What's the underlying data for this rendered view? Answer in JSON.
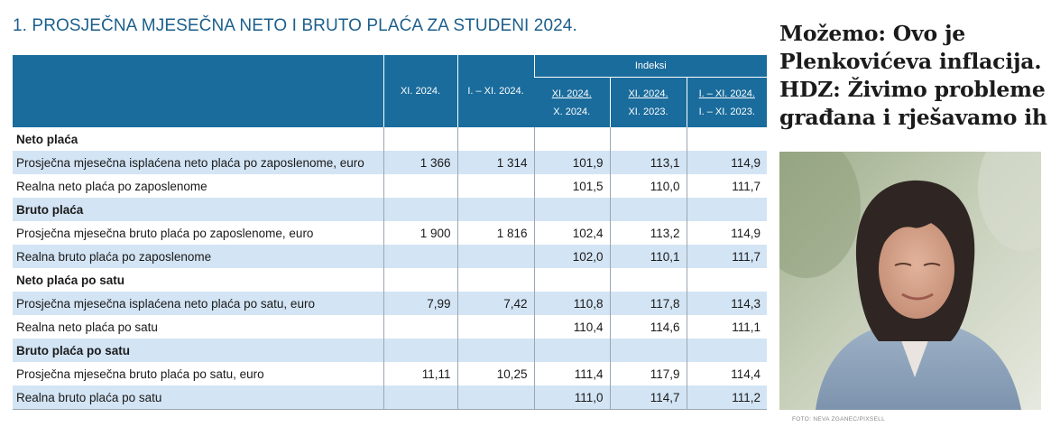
{
  "table": {
    "title": "1. PROSJEČNA MJESEČNA NETO I BRUTO PLAĆA ZA STUDENI 2024.",
    "headers": {
      "col1": "XI. 2024.",
      "col2": "I. – XI. 2024.",
      "indeksi": "Indeksi",
      "idx1_num": "XI. 2024.",
      "idx1_den": "X. 2024.",
      "idx2_num": "XI. 2024.",
      "idx2_den": "XI. 2023.",
      "idx3_num": "I. – XI. 2024.",
      "idx3_den": "I. – XI. 2023."
    },
    "rows": [
      {
        "label": "Neto plaća",
        "section": true,
        "values": [
          "",
          "",
          "",
          "",
          ""
        ]
      },
      {
        "label": "Prosječna mjesečna isplaćena neto plaća po zaposlenome, euro",
        "section": false,
        "values": [
          "1 366",
          "1 314",
          "101,9",
          "113,1",
          "114,9"
        ]
      },
      {
        "label": "Realna neto plaća po zaposlenome",
        "section": false,
        "values": [
          "",
          "",
          "101,5",
          "110,0",
          "111,7"
        ]
      },
      {
        "label": "Bruto plaća",
        "section": true,
        "values": [
          "",
          "",
          "",
          "",
          ""
        ]
      },
      {
        "label": "Prosječna mjesečna bruto plaća po zaposlenome, euro",
        "section": false,
        "values": [
          "1 900",
          "1 816",
          "102,4",
          "113,2",
          "114,9"
        ]
      },
      {
        "label": "Realna bruto plaća po zaposlenome",
        "section": false,
        "values": [
          "",
          "",
          "102,0",
          "110,1",
          "111,7"
        ]
      },
      {
        "label": "Neto plaća po satu",
        "section": true,
        "values": [
          "",
          "",
          "",
          "",
          ""
        ]
      },
      {
        "label": "Prosječna mjesečna isplaćena neto plaća po satu, euro",
        "section": false,
        "values": [
          "7,99",
          "7,42",
          "110,8",
          "117,8",
          "114,3"
        ]
      },
      {
        "label": "Realna neto plaća po satu",
        "section": false,
        "values": [
          "",
          "",
          "110,4",
          "114,6",
          "111,1"
        ]
      },
      {
        "label": "Bruto plaća po satu",
        "section": true,
        "values": [
          "",
          "",
          "",
          "",
          ""
        ]
      },
      {
        "label": "Prosječna mjesečna bruto plaća po satu, euro",
        "section": false,
        "values": [
          "11,11",
          "10,25",
          "111,4",
          "117,9",
          "114,4"
        ]
      },
      {
        "label": "Realna bruto plaća po satu",
        "section": false,
        "values": [
          "",
          "",
          "111,0",
          "114,7",
          "111,2"
        ]
      }
    ]
  },
  "article": {
    "headline": "Možemo: Ovo je Plenkovićeva inflacija. HDZ: Živimo probleme građana i rješavamo ih",
    "photo_credit": "FOTO: NEVA ZGANEC/PIXSELL"
  },
  "colors": {
    "header_blue": "#1a6c9c",
    "title_blue": "#1c5f8c",
    "row_blue": "#d3e4f4"
  }
}
